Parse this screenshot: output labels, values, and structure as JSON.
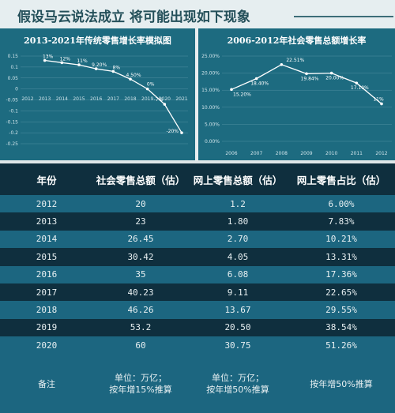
{
  "headline": "假设马云说法成立  将可能出现如下现象",
  "chart_data": [
    {
      "type": "line",
      "title": "2013-2021年传统零售增长率模拟图",
      "x": [
        "2012",
        "2013",
        "2014",
        "2015",
        "2016",
        "2017",
        "2018",
        "2019",
        "2020",
        "2021"
      ],
      "y_ticks": [
        "0.15",
        "0.1",
        "0.05",
        "0",
        "-0.05",
        "-0.1",
        "-0.15",
        "-0.2",
        "-0.25"
      ],
      "ylim": [
        -0.25,
        0.15
      ],
      "series": [
        {
          "values": [
            null,
            0.13,
            0.12,
            0.11,
            0.092,
            0.08,
            0.045,
            0.0,
            -0.07,
            -0.2
          ]
        }
      ],
      "data_labels": [
        "",
        "13%",
        "12%",
        "11%",
        "9.20%",
        "8%",
        "4.50%",
        "0%",
        "-7%",
        "-20%"
      ]
    },
    {
      "type": "line",
      "title": "2006-2012年社会零售总额增长率",
      "x": [
        "2006",
        "2007",
        "2008",
        "2009",
        "2010",
        "2011",
        "2012"
      ],
      "y_ticks": [
        "25.00%",
        "20.00%",
        "15.00%",
        "10.00%",
        "5.00%",
        "0.00%"
      ],
      "ylim": [
        0,
        0.25
      ],
      "series": [
        {
          "values": [
            0.152,
            0.184,
            0.2251,
            0.1984,
            0.2,
            0.171,
            0.11
          ]
        }
      ],
      "data_labels": [
        "15.20%",
        "18.40%",
        "22.51%",
        "19.84%",
        "20.00%",
        "17.10%",
        "11%"
      ]
    }
  ],
  "table": {
    "headers": [
      "年份",
      "社会零售总额（估）",
      "网上零售总额（估）",
      "网上零售占比（估）"
    ],
    "rows": [
      [
        "2012",
        "20",
        "1.2",
        "6.00%"
      ],
      [
        "2013",
        "23",
        "1.80",
        "7.83%"
      ],
      [
        "2014",
        "26.45",
        "2.70",
        "10.21%"
      ],
      [
        "2015",
        "30.42",
        "4.05",
        "13.31%"
      ],
      [
        "2016",
        "35",
        "6.08",
        "17.36%"
      ],
      [
        "2017",
        "40.23",
        "9.11",
        "22.65%"
      ],
      [
        "2018",
        "46.26",
        "13.67",
        "29.55%"
      ],
      [
        "2019",
        "53.2",
        "20.50",
        "38.54%"
      ],
      [
        "2020",
        "60",
        "30.75",
        "51.26%"
      ]
    ],
    "footer": {
      "label": "备注",
      "col2_line1": "单位：万亿；",
      "col2_line2": "按年增15%推算",
      "col3_line1": "单位：万亿；",
      "col3_line2": "按年增50%推算",
      "col4": "按年增50%推算"
    }
  }
}
